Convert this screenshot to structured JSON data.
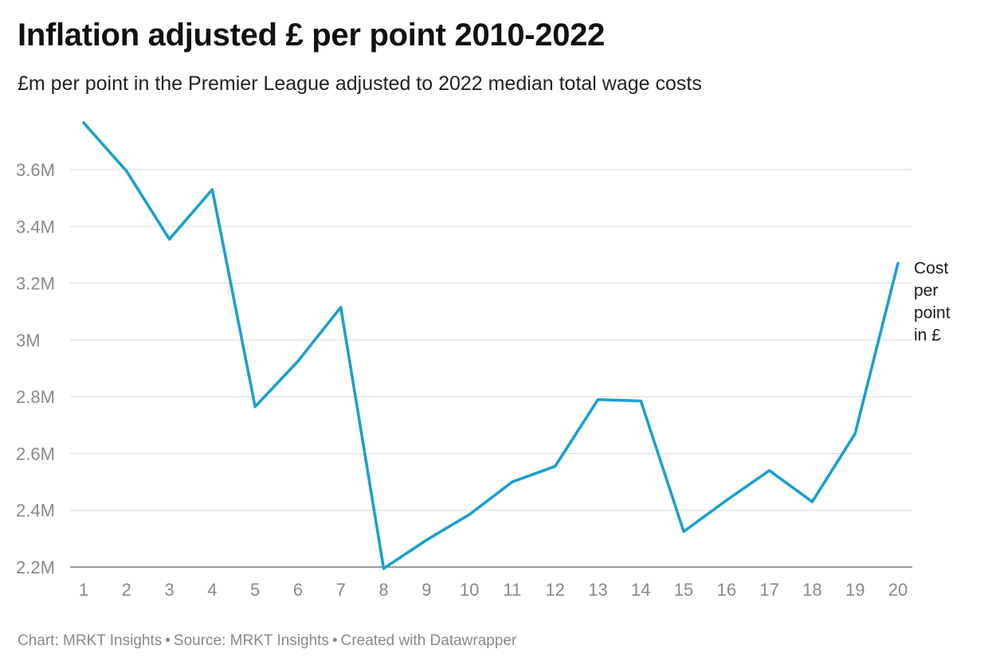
{
  "title": "Inflation adjusted £ per point 2010-2022",
  "subtitle": "£m per point in the Premier League adjusted to 2022 median total wage costs",
  "footer": {
    "chart": "Chart: MRKT Insights",
    "source": "Source: MRKT Insights",
    "created": "Created with Datawrapper"
  },
  "colors": {
    "line": "#1ba0cc",
    "grid": "#e0e0e0",
    "tick": "#8a8a8a"
  },
  "chart_data": {
    "type": "line",
    "title": "Inflation adjusted £ per point 2010-2022",
    "xlabel": "",
    "ylabel": "",
    "x": [
      1,
      2,
      3,
      4,
      5,
      6,
      7,
      8,
      9,
      10,
      11,
      12,
      13,
      14,
      15,
      16,
      17,
      18,
      19,
      20
    ],
    "series": [
      {
        "name": "Cost per point in £",
        "label_lines": [
          "Cost",
          "per",
          "point",
          "in £"
        ],
        "values": [
          3.765,
          3.595,
          3.355,
          3.53,
          2.765,
          2.925,
          3.115,
          2.195,
          2.295,
          2.385,
          2.5,
          2.555,
          2.79,
          2.785,
          2.325,
          2.435,
          2.54,
          2.43,
          2.67,
          3.27
        ]
      }
    ],
    "ylim": [
      2.2,
      3.8
    ],
    "yticks": [
      2.2,
      2.4,
      2.6,
      2.8,
      3.0,
      3.2,
      3.4,
      3.6
    ],
    "ytick_labels": [
      "2.2M",
      "2.4M",
      "2.6M",
      "2.8M",
      "3M",
      "3.2M",
      "3.4M",
      "3.6M"
    ],
    "grid": true
  }
}
